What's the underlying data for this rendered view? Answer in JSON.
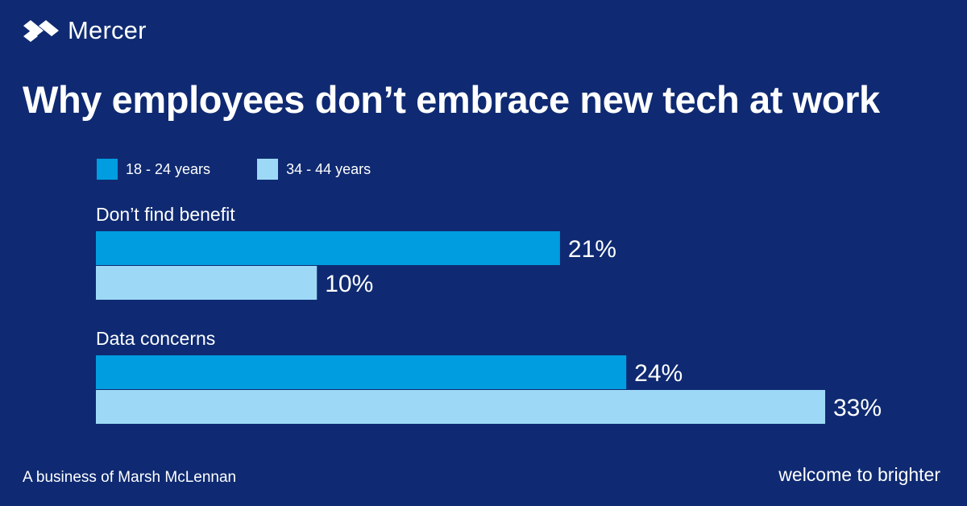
{
  "brand": {
    "name": "Mercer",
    "logo_icon": "mercer-logo-icon"
  },
  "colors": {
    "background": "#0f2a72",
    "series_1": "#009de0",
    "series_2": "#9dd9f6",
    "text": "#ffffff"
  },
  "footer": {
    "left": "A business of Marsh McLennan",
    "right": "welcome to brighter"
  },
  "chart_data": {
    "type": "bar",
    "orientation": "horizontal",
    "title": "Why employees don’t embrace new tech at work",
    "categories": [
      "Don’t find benefit",
      "Data concerns"
    ],
    "series": [
      {
        "name": "18 - 24 years",
        "values": [
          21,
          24
        ],
        "labels": [
          "21%",
          "24%"
        ]
      },
      {
        "name": "34 - 44 years",
        "values": [
          10,
          33
        ],
        "labels": [
          "10%",
          "33%"
        ]
      }
    ],
    "unit": "%",
    "xlim": [
      0,
      33
    ],
    "grid": false,
    "axes_visible": false,
    "legend_position": "top-left"
  }
}
